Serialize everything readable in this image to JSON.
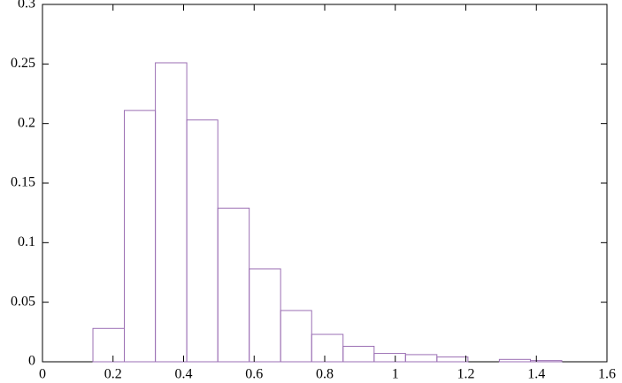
{
  "chart_data": {
    "type": "histogram",
    "bins": [
      0.143,
      0.232,
      0.32,
      0.409,
      0.497,
      0.586,
      0.675,
      0.763,
      0.852,
      0.94,
      1.029,
      1.118,
      1.206,
      1.295,
      1.383,
      1.472
    ],
    "values": [
      0.028,
      0.211,
      0.251,
      0.203,
      0.129,
      0.078,
      0.043,
      0.023,
      0.013,
      0.007,
      0.006,
      0.004,
      0,
      0.002,
      0.001
    ],
    "color": "#9b6fb4",
    "xlim": [
      0,
      1.6
    ],
    "xticks": [
      0,
      0.2,
      0.4,
      0.6,
      0.8,
      1,
      1.2,
      1.4,
      1.6
    ],
    "ylim": [
      0,
      0.3
    ],
    "yticks": [
      0,
      0.05,
      0.1,
      0.15,
      0.2,
      0.25,
      0.3
    ]
  }
}
